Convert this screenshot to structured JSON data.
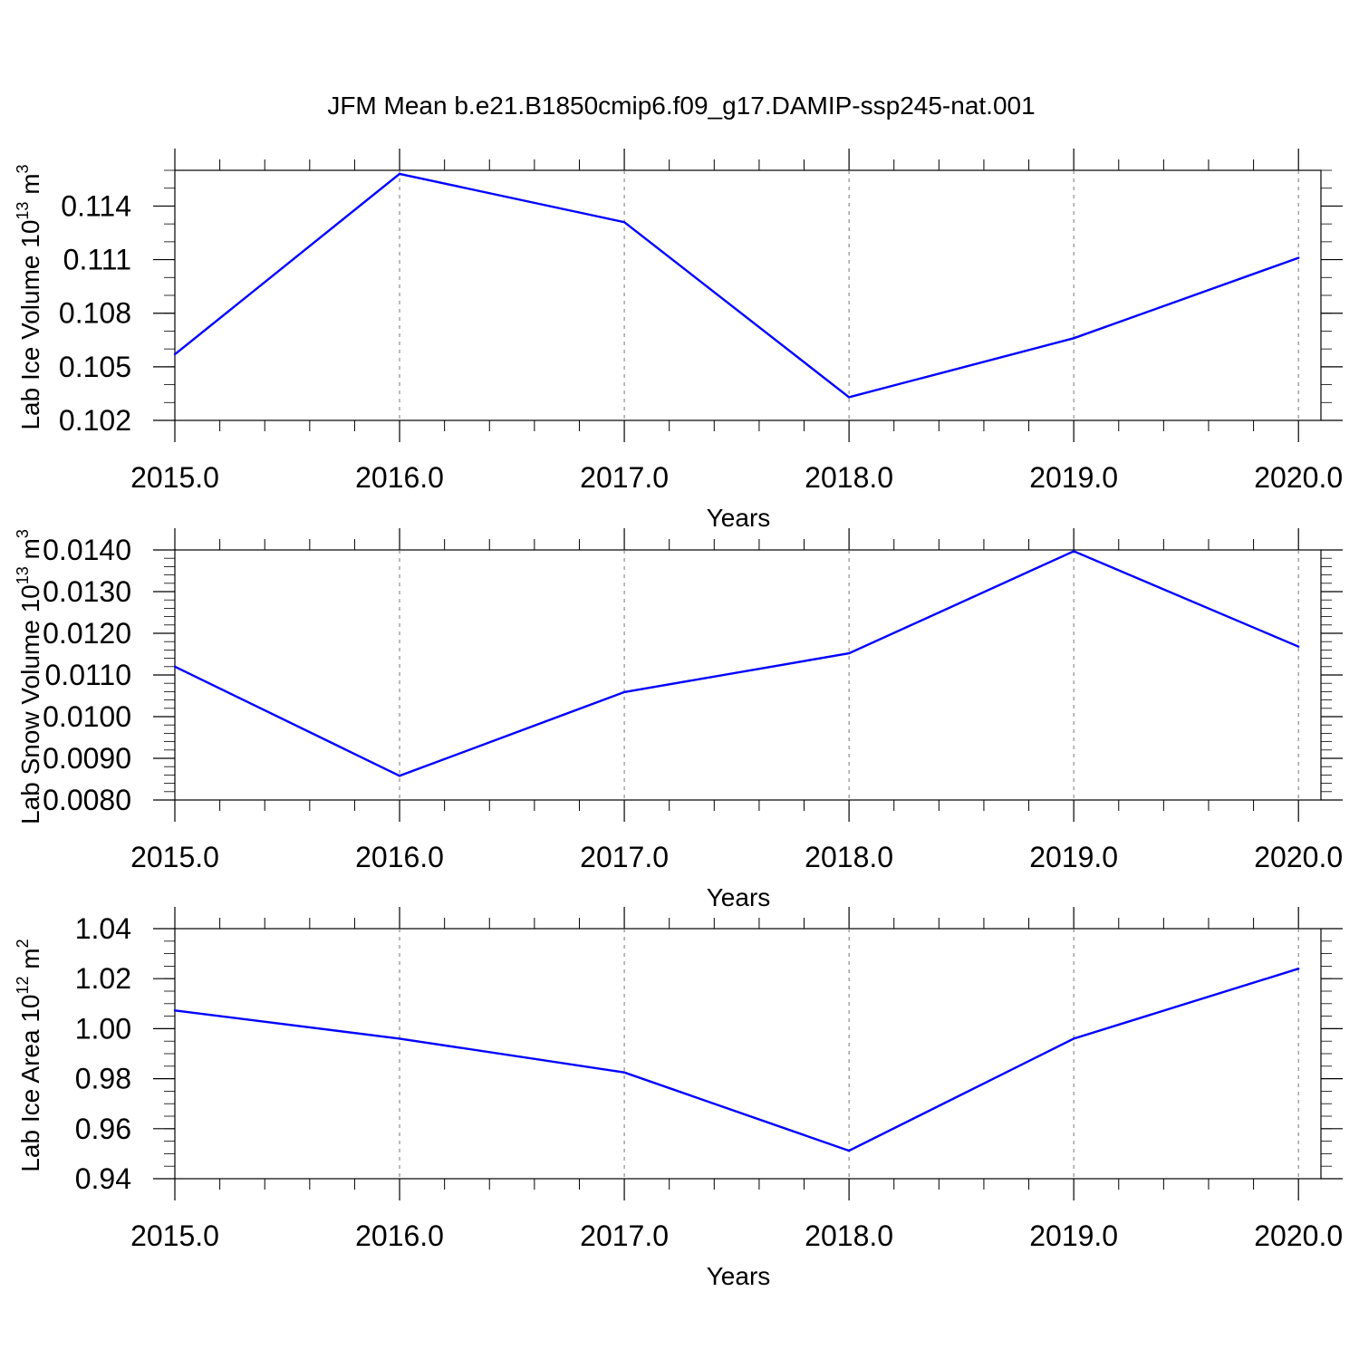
{
  "title": "JFM Mean b.e21.B1850cmip6.f09_g17.DAMIP-ssp245-nat.001",
  "colors": {
    "line": "#0000ff",
    "axis": "#000000",
    "grid": "#777777",
    "background": "#ffffff"
  },
  "chart_data": [
    {
      "type": "line",
      "xlabel": "Years",
      "ylabel": {
        "text": "Lab Ice Volume 10",
        "exp": "13",
        "unit": " m",
        "unit_exp": "3"
      },
      "x": [
        2015,
        2016,
        2017,
        2018,
        2019,
        2020
      ],
      "x_tick_labels": [
        "2015.0",
        "2016.0",
        "2017.0",
        "2018.0",
        "2019.0",
        "2020.0"
      ],
      "values": [
        0.1057,
        0.1158,
        0.1131,
        0.1033,
        0.1066,
        0.1111
      ],
      "xlim": [
        2015,
        2020.1
      ],
      "ylim": [
        0.102,
        0.116
      ],
      "y_ticks": [
        0.102,
        0.105,
        0.108,
        0.111,
        0.114
      ],
      "y_tick_labels": [
        "0.102",
        "0.105",
        "0.108",
        "0.111",
        "0.114"
      ],
      "y_minor_step": 0.001,
      "grid": "vertical dashed"
    },
    {
      "type": "line",
      "xlabel": "Years",
      "ylabel": {
        "text": "Lab Snow Volume 10",
        "exp": "13",
        "unit": " m",
        "unit_exp": "3"
      },
      "x": [
        2015,
        2016,
        2017,
        2018,
        2019,
        2020
      ],
      "x_tick_labels": [
        "2015.0",
        "2016.0",
        "2017.0",
        "2018.0",
        "2019.0",
        "2020.0"
      ],
      "values": [
        0.0112,
        0.00858,
        0.01059,
        0.01152,
        0.01397,
        0.01168
      ],
      "xlim": [
        2015,
        2020.1
      ],
      "ylim": [
        0.008,
        0.014
      ],
      "y_ticks": [
        0.008,
        0.009,
        0.01,
        0.011,
        0.012,
        0.013,
        0.014
      ],
      "y_tick_labels": [
        "0.0080",
        "0.0090",
        "0.0100",
        "0.0110",
        "0.0120",
        "0.0130",
        "0.0140"
      ],
      "y_minor_step": 0.0002,
      "grid": "vertical dashed"
    },
    {
      "type": "line",
      "xlabel": "Years",
      "ylabel": {
        "text": "Lab Ice Area 10",
        "exp": "12",
        "unit": " m",
        "unit_exp": "2"
      },
      "x": [
        2015,
        2016,
        2017,
        2018,
        2019,
        2020
      ],
      "x_tick_labels": [
        "2015.0",
        "2016.0",
        "2017.0",
        "2018.0",
        "2019.0",
        "2020.0"
      ],
      "values": [
        1.0073,
        0.996,
        0.9825,
        0.9512,
        0.996,
        1.024
      ],
      "xlim": [
        2015,
        2020.1
      ],
      "ylim": [
        0.94,
        1.04
      ],
      "y_ticks": [
        0.94,
        0.96,
        0.98,
        1.0,
        1.02,
        1.04
      ],
      "y_tick_labels": [
        "0.94",
        "0.96",
        "0.98",
        "1.00",
        "1.02",
        "1.04"
      ],
      "y_minor_step": 0.005,
      "grid": "vertical dashed"
    }
  ]
}
